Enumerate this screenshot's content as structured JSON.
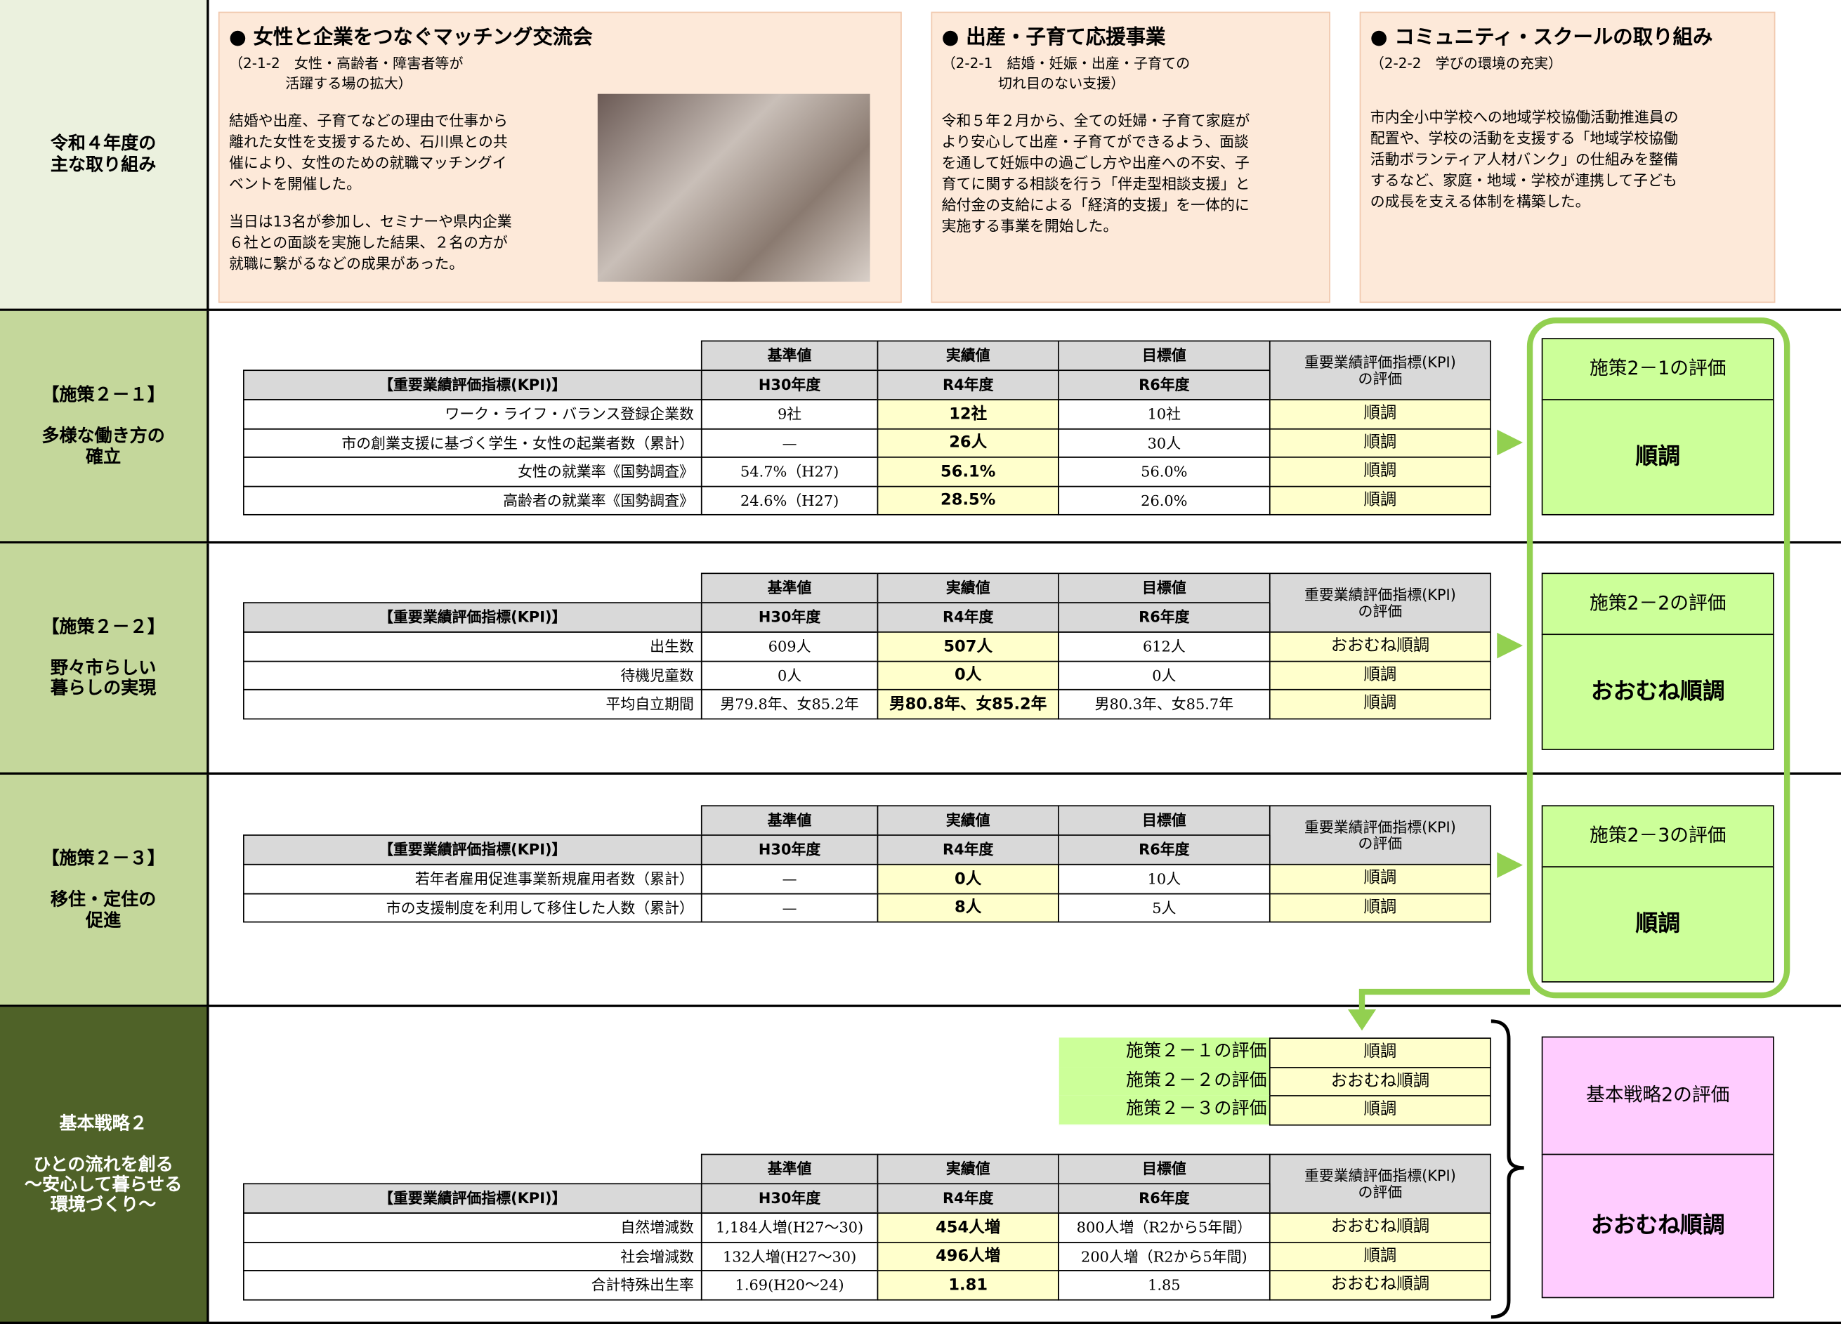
{
  "top": {
    "label": "令和４年度の\n主な取り組み",
    "highlights": [
      {
        "title": "● 女性と企業をつなぐマッチング交流会",
        "ref": "（2-1-2　女性・高齢者・障害者等が\n　　　　活躍する場の拡大）",
        "body": [
          "結婚や出産、子育てなどの理由で仕事から\n離れた女性を支援するため、石川県との共\n催により、女性のための就職マッチングイ\nベントを開催した。",
          "当日は13名が参加し、セミナーや県内企業\n６社との面談を実施した結果、２名の方が\n就職に繋がるなどの成果があった。"
        ]
      },
      {
        "title": "● 出産・子育て応援事業",
        "ref": "（2-2-1　結婚・妊娠・出産・子育ての\n　　　　切れ目のない支援）",
        "body": [
          "令和５年２月から、全ての妊婦・子育て家庭が\nより安心して出産・子育てができるよう、面談\nを通して妊娠中の過ごし方や出産への不安、子\n育てに関する相談を行う「伴走型相談支援」と\n給付金の支給による「経済的支援」を一体的に\n実施する事業を開始した。"
        ]
      },
      {
        "title": "● コミュニティ・スクールの取り組み",
        "ref": "（2-2-2　学びの環境の充実）",
        "body": [
          "市内全小中学校への地域学校協働活動推進員の\n配置や、学校の活動を支援する「地域学校協働\n活動ボランティア人材バンク」の仕組みを整備\nするなど、家庭・地域・学校が連携して子ども\nの成長を支える体制を構築した。"
        ]
      }
    ]
  },
  "kpi_header": {
    "baseline": "基準値",
    "actual": "実績値",
    "target": "目標値",
    "evaluation": "重要業績評価指標(KPI)\nの評価",
    "indicator": "【重要業績評価指標(KPI)】",
    "baseline_year": "H30年度",
    "actual_year": "R4年度",
    "target_year": "R6年度"
  },
  "sections": [
    {
      "label": "【施策２－１】",
      "sublabel": "多様な働き方の\n確立",
      "rows": [
        {
          "indicator": "ワーク・ライフ・バランス登録企業数",
          "baseline": "9社",
          "actual": "12社",
          "target": "10社",
          "evaluation": "順調"
        },
        {
          "indicator": "市の創業支援に基づく学生・女性の起業者数（累計）",
          "baseline": "—",
          "actual": "26人",
          "target": "30人",
          "evaluation": "順調"
        },
        {
          "indicator": "女性の就業率《国勢調査》",
          "baseline": "54.7%（H27)",
          "actual": "56.1%",
          "target": "56.0%",
          "evaluation": "順調"
        },
        {
          "indicator": "高齢者の就業率《国勢調査》",
          "baseline": "24.6%（H27)",
          "actual": "28.5%",
          "target": "26.0%",
          "evaluation": "順調"
        }
      ],
      "assessment": {
        "title": "施策2－1の評価",
        "result": "順調"
      }
    },
    {
      "label": "【施策２－２】",
      "sublabel": "野々市らしい\n暮らしの実現",
      "rows": [
        {
          "indicator": "出生数",
          "baseline": "609人",
          "actual": "507人",
          "target": "612人",
          "evaluation": "おおむね順調"
        },
        {
          "indicator": "待機児童数",
          "baseline": "0人",
          "actual": "0人",
          "target": "0人",
          "evaluation": "順調"
        },
        {
          "indicator": "平均自立期間",
          "baseline": "男79.8年、女85.2年",
          "actual": "男80.8年、女85.2年",
          "target": "男80.3年、女85.7年",
          "evaluation": "順調"
        }
      ],
      "assessment": {
        "title": "施策2－2の評価",
        "result": "おおむね順調"
      }
    },
    {
      "label": "【施策２－３】",
      "sublabel": "移住・定住の\n促進",
      "rows": [
        {
          "indicator": "若年者雇用促進事業新規雇用者数（累計）",
          "baseline": "—",
          "actual": "0人",
          "target": "10人",
          "evaluation": "順調"
        },
        {
          "indicator": "市の支援制度を利用して移住した人数（累計）",
          "baseline": "—",
          "actual": "8人",
          "target": "5人",
          "evaluation": "順調"
        }
      ],
      "assessment": {
        "title": "施策2－3の評価",
        "result": "順調"
      }
    },
    {
      "label": "基本戦略２",
      "sublabel": "ひとの流れを創る\n～安心して暮らせる\n環境づくり～",
      "summary": [
        {
          "label": "施策２－１の評価",
          "value": "順調"
        },
        {
          "label": "施策２－２の評価",
          "value": "おおむね順調"
        },
        {
          "label": "施策２－３の評価",
          "value": "順調"
        }
      ],
      "rows": [
        {
          "indicator": "自然増減数",
          "baseline": "1,184人増(H27～30)",
          "actual": "454人増",
          "target": "800人増（R2から5年間）",
          "evaluation": "おおむね順調"
        },
        {
          "indicator": "社会増減数",
          "baseline": "132人増(H27～30)",
          "actual": "496人増",
          "target": "200人増（R2から5年間)",
          "evaluation": "順調"
        },
        {
          "indicator": "合計特殊出生率",
          "baseline": "1.69(H20～24)",
          "actual": "1.81",
          "target": "1.85",
          "evaluation": "おおむね順調"
        }
      ],
      "assessment": {
        "title": "基本戦略2の評価",
        "result": "おおむね順調"
      }
    }
  ]
}
